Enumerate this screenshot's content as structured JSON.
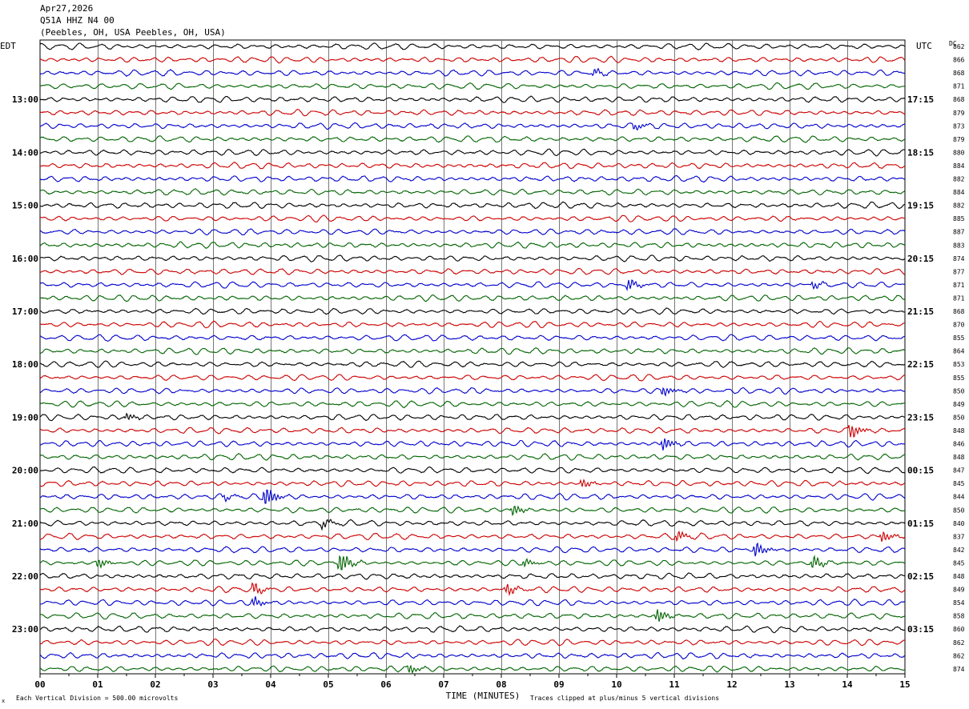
{
  "header": {
    "date": "Apr27,2026",
    "station": "Q51A HHZ N4 00",
    "location": "(Peebles, OH, USA Peebles, OH, USA)"
  },
  "chart_data": {
    "type": "line",
    "title": "Q51A HHZ N4 00",
    "left_timezone": "EDT",
    "right_timezone": "UTC",
    "dc_label": "DC",
    "xlabel": "TIME (MINUTES)",
    "xlim": [
      0,
      15
    ],
    "x_ticks": [
      "00",
      "01",
      "02",
      "03",
      "04",
      "05",
      "06",
      "07",
      "08",
      "09",
      "10",
      "11",
      "12",
      "13",
      "14",
      "15"
    ],
    "left_hour_labels": [
      "13:00",
      "14:00",
      "15:00",
      "16:00",
      "17:00",
      "18:00",
      "19:00",
      "20:00",
      "21:00",
      "22:00",
      "23:00"
    ],
    "right_hour_labels": [
      "17:15",
      "18:15",
      "19:15",
      "20:15",
      "21:15",
      "22:15",
      "23:15",
      "00:15",
      "01:15",
      "02:15",
      "03:15"
    ],
    "trace_count": 48,
    "trace_colors": [
      "#000000",
      "#cc0000",
      "#0000cc",
      "#006400"
    ],
    "dc_offsets": [
      862,
      866,
      868,
      871,
      868,
      879,
      873,
      879,
      880,
      884,
      882,
      884,
      882,
      885,
      887,
      883,
      874,
      877,
      871,
      871,
      868,
      870,
      855,
      864,
      853,
      855,
      850,
      849,
      850,
      848,
      846,
      848,
      847,
      845,
      844,
      850,
      840,
      837,
      842,
      845,
      848,
      849,
      854,
      858,
      860,
      862,
      862,
      874
    ],
    "events": [
      {
        "trace": 2,
        "minute": 9.6,
        "amplitude": 0.5
      },
      {
        "trace": 6,
        "minute": 10.3,
        "amplitude": 0.5
      },
      {
        "trace": 18,
        "minute": 10.2,
        "amplitude": 0.8
      },
      {
        "trace": 18,
        "minute": 13.4,
        "amplitude": 0.5
      },
      {
        "trace": 26,
        "minute": 10.8,
        "amplitude": 0.7
      },
      {
        "trace": 28,
        "minute": 1.5,
        "amplitude": 0.5
      },
      {
        "trace": 29,
        "minute": 14.05,
        "amplitude": 1.2
      },
      {
        "trace": 30,
        "minute": 10.8,
        "amplitude": 1.0
      },
      {
        "trace": 33,
        "minute": 9.4,
        "amplitude": 0.6
      },
      {
        "trace": 34,
        "minute": 3.9,
        "amplitude": 1.8
      },
      {
        "trace": 34,
        "minute": 3.2,
        "amplitude": 0.4
      },
      {
        "trace": 35,
        "minute": 8.2,
        "amplitude": 0.8
      },
      {
        "trace": 36,
        "minute": 4.9,
        "amplitude": 0.6
      },
      {
        "trace": 37,
        "minute": 11.05,
        "amplitude": 0.7
      },
      {
        "trace": 37,
        "minute": 14.6,
        "amplitude": 0.8
      },
      {
        "trace": 38,
        "minute": 12.4,
        "amplitude": 1.1
      },
      {
        "trace": 39,
        "minute": 5.2,
        "amplitude": 1.8
      },
      {
        "trace": 39,
        "minute": 13.4,
        "amplitude": 1.0
      },
      {
        "trace": 39,
        "minute": 1.0,
        "amplitude": 0.7
      },
      {
        "trace": 39,
        "minute": 8.4,
        "amplitude": 0.6
      },
      {
        "trace": 41,
        "minute": 3.7,
        "amplitude": 0.9
      },
      {
        "trace": 41,
        "minute": 8.1,
        "amplitude": 0.8
      },
      {
        "trace": 42,
        "minute": 3.7,
        "amplitude": 0.7
      },
      {
        "trace": 43,
        "minute": 10.7,
        "amplitude": 1.0
      },
      {
        "trace": 47,
        "minute": 6.4,
        "amplitude": 0.6
      }
    ],
    "footer_left": "Each Vertical Division =  500.00 microvolts",
    "footer_right": "Traces clipped at plus/minus 5 vertical divisions",
    "corner_mark": "x"
  }
}
